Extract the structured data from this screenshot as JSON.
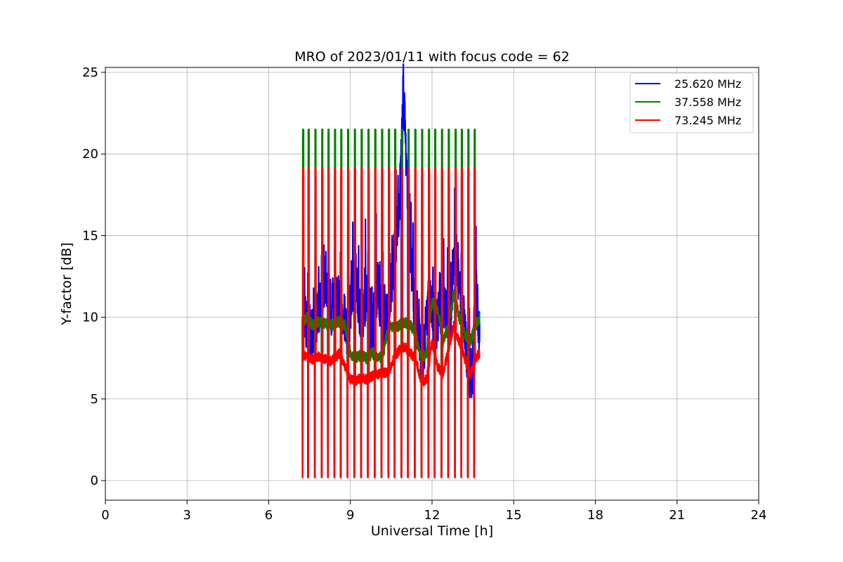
{
  "chart_data": {
    "type": "line",
    "title": "MRO of 2023/01/11 with focus code = 62",
    "xlabel": "Universal Time [h]",
    "ylabel": "Y-factor [dB]",
    "xlim": [
      0,
      24
    ],
    "ylim": [
      -1.2,
      25.3
    ],
    "xticks": [
      0,
      3,
      6,
      9,
      12,
      15,
      18,
      21,
      24
    ],
    "yticks": [
      0,
      5,
      10,
      15,
      20,
      25
    ],
    "grid": true,
    "legend_position": "top-right",
    "calibration_pulse_times": [
      7.25,
      7.45,
      7.7,
      7.95,
      8.18,
      8.42,
      8.65,
      8.9,
      9.15,
      9.4,
      9.65,
      9.9,
      10.15,
      10.4,
      10.63,
      10.88,
      11.12,
      11.37,
      11.62,
      11.87,
      12.1,
      12.35,
      12.6,
      12.85,
      13.08,
      13.32,
      13.55
    ],
    "series": [
      {
        "name": "25.620 MHz",
        "color": "#0000ff",
        "x": [
          7.25,
          7.4,
          7.6,
          7.9,
          8.1,
          8.3,
          8.5,
          8.7,
          8.9,
          9.05,
          9.2,
          9.4,
          9.6,
          9.8,
          10.0,
          10.2,
          10.4,
          10.6,
          10.8,
          10.9,
          10.95,
          11.0,
          11.1,
          11.3,
          11.5,
          11.65,
          11.8,
          11.95,
          12.1,
          12.3,
          12.5,
          12.7,
          12.85,
          13.0,
          13.2,
          13.35,
          13.5,
          13.6,
          13.75
        ],
        "y": [
          10.0,
          9.5,
          9.0,
          11.0,
          12.5,
          10.5,
          11.0,
          10.5,
          9.0,
          11.5,
          12.5,
          9.5,
          11.0,
          9.0,
          12.0,
          9.5,
          10.5,
          13.5,
          17.0,
          21.0,
          24.0,
          22.0,
          18.0,
          11.0,
          9.0,
          7.0,
          10.0,
          11.5,
          8.5,
          11.0,
          10.5,
          10.0,
          15.5,
          11.5,
          9.5,
          6.0,
          7.0,
          12.0,
          9.0
        ]
      },
      {
        "name": "37.558 MHz",
        "color": "#008000",
        "x": [
          7.25,
          7.4,
          7.6,
          7.8,
          8.0,
          8.3,
          8.6,
          8.8,
          9.0,
          9.2,
          9.4,
          9.6,
          9.8,
          10.0,
          10.2,
          10.4,
          10.6,
          10.8,
          11.0,
          11.2,
          11.4,
          11.6,
          11.8,
          12.0,
          12.2,
          12.4,
          12.6,
          12.8,
          13.0,
          13.2,
          13.4,
          13.6,
          13.75
        ],
        "y": [
          9.7,
          10.0,
          9.5,
          9.7,
          9.6,
          9.5,
          9.8,
          9.5,
          7.8,
          7.5,
          7.7,
          7.5,
          7.8,
          7.5,
          7.7,
          9.5,
          9.3,
          9.5,
          9.7,
          9.5,
          9.0,
          7.5,
          7.8,
          11.0,
          10.5,
          8.5,
          9.5,
          11.5,
          10.0,
          9.0,
          8.5,
          9.5,
          10.0
        ]
      },
      {
        "name": "73.245 MHz",
        "color": "#ff0000",
        "x": [
          7.25,
          7.4,
          7.6,
          7.8,
          8.0,
          8.3,
          8.6,
          8.8,
          9.0,
          9.2,
          9.4,
          9.6,
          9.8,
          10.0,
          10.2,
          10.4,
          10.6,
          10.8,
          11.0,
          11.2,
          11.4,
          11.6,
          11.8,
          12.0,
          12.2,
          12.4,
          12.6,
          12.8,
          13.0,
          13.2,
          13.4,
          13.6,
          13.75
        ],
        "y": [
          7.7,
          7.6,
          7.4,
          7.6,
          7.5,
          7.3,
          7.8,
          7.0,
          6.2,
          6.1,
          6.3,
          6.2,
          6.4,
          6.5,
          6.6,
          6.6,
          7.5,
          8.0,
          8.2,
          7.8,
          7.5,
          6.0,
          6.2,
          8.5,
          7.0,
          6.5,
          8.0,
          9.5,
          8.5,
          7.5,
          6.5,
          7.5,
          7.8
        ]
      }
    ],
    "pulse_peaks": {
      "green": 21.5,
      "red": 19.1,
      "low": 0.2
    }
  }
}
